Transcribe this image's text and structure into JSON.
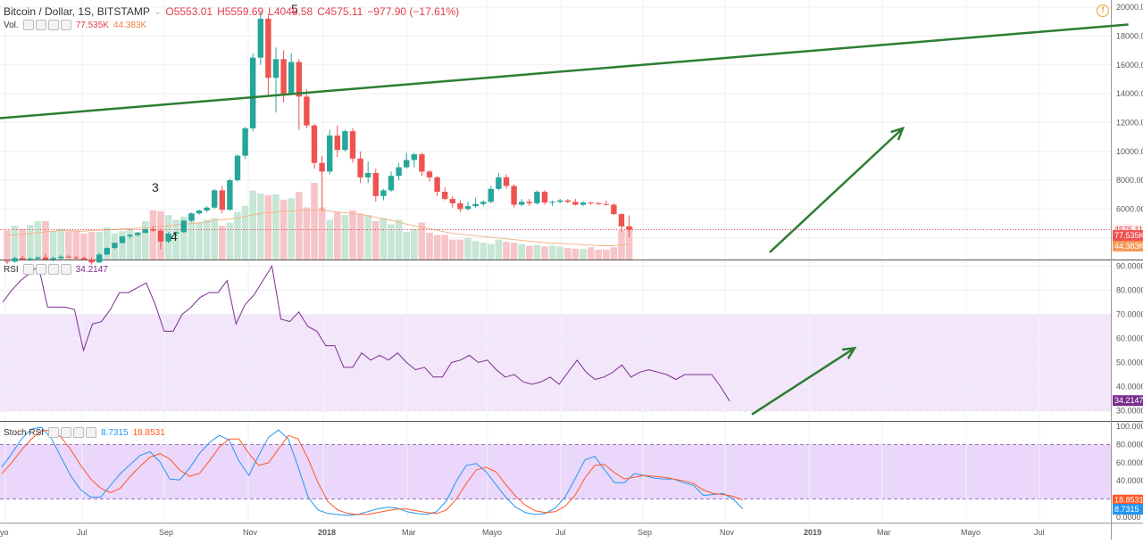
{
  "header": {
    "symbol": "Bitcoin / Dollar, 1S, BITSTAMP",
    "open": "O5553.01",
    "high": "H5559.69",
    "low": "L4048.58",
    "close": "C4575.11",
    "change": "−977.90 (−17.61%)",
    "vol_label": "Vol.",
    "vol_value": "77.535K",
    "vol_ma_value": "44.383K"
  },
  "rsi_legend": {
    "label": "RSI",
    "value": "34.2147"
  },
  "stoch_legend": {
    "label": "Stoch RSI",
    "k_value": "8.7315",
    "d_value": "18.8531"
  },
  "colors": {
    "up": "#26a69a",
    "down": "#ef5350",
    "vol_up": "#c8e6d6",
    "vol_down": "#f6c5c8",
    "vol_ma": "#f0b58a",
    "rsi_line": "#7b2d8e",
    "rsi_band": "#f3e6fb",
    "k_line": "#2196f3",
    "d_line": "#ff5722",
    "trend": "#2e7d32"
  },
  "chart_data": [
    {
      "type": "candlestick",
      "title": "Bitcoin / Dollar, 1S, BITSTAMP",
      "x_ticks": [
        "yo",
        "Jul",
        "Sep",
        "Nov",
        "2018",
        "Mar",
        "Mayo",
        "Jul",
        "Sep",
        "Nov",
        "2019",
        "Mar",
        "Mayo",
        "Jul"
      ],
      "y_ticks": [
        "20000.00",
        "18000.00",
        "16000.00",
        "14000.00",
        "12000.00",
        "10000.00",
        "8000.00",
        "6000.00",
        "4000.00"
      ],
      "ylim": [
        2500,
        20500
      ],
      "last_price_label": "4575.11",
      "volume_labels": [
        "77.535K",
        "44.383K"
      ],
      "wave_labels": [
        "3",
        "4",
        "5"
      ],
      "ohlc": [
        [
          2400,
          2500,
          2200,
          2350
        ],
        [
          2350,
          2700,
          2300,
          2600
        ],
        [
          2600,
          2750,
          2450,
          2500
        ],
        [
          2500,
          2650,
          2400,
          2550
        ],
        [
          2550,
          2700,
          2450,
          2650
        ],
        [
          2650,
          2900,
          2500,
          2500
        ],
        [
          2500,
          2700,
          2350,
          2600
        ],
        [
          2600,
          2800,
          2500,
          2700
        ],
        [
          2700,
          2800,
          2600,
          2650
        ],
        [
          2650,
          2750,
          2550,
          2600
        ],
        [
          2600,
          2700,
          2450,
          2500
        ],
        [
          2500,
          2650,
          2150,
          2300
        ],
        [
          2300,
          2950,
          2250,
          2850
        ],
        [
          2850,
          3350,
          2800,
          3300
        ],
        [
          3300,
          3700,
          3200,
          3650
        ],
        [
          3650,
          4150,
          3600,
          4100
        ],
        [
          4100,
          4300,
          3950,
          4200
        ],
        [
          4200,
          4400,
          4100,
          4350
        ],
        [
          4350,
          4650,
          4300,
          4600
        ],
        [
          4600,
          4800,
          4450,
          4500
        ],
        [
          4500,
          4600,
          3200,
          3750
        ],
        [
          3750,
          4400,
          3650,
          4300
        ],
        [
          4300,
          4450,
          4100,
          4400
        ],
        [
          4400,
          5250,
          4350,
          5200
        ],
        [
          5200,
          5750,
          5100,
          5700
        ],
        [
          5700,
          5950,
          5600,
          5900
        ],
        [
          5900,
          6200,
          5800,
          6100
        ],
        [
          6100,
          7400,
          6000,
          7300
        ],
        [
          7300,
          7600,
          5700,
          5950
        ],
        [
          5950,
          8100,
          5900,
          8000
        ],
        [
          8000,
          9800,
          7900,
          9700
        ],
        [
          9700,
          11700,
          9500,
          11600
        ],
        [
          11600,
          16800,
          11400,
          16500
        ],
        [
          16500,
          19666,
          16000,
          19200
        ],
        [
          19200,
          19500,
          13800,
          15100
        ],
        [
          15100,
          17200,
          12700,
          16400
        ],
        [
          16400,
          17000,
          13400,
          14000
        ],
        [
          14000,
          16800,
          13900,
          16200
        ],
        [
          16200,
          16400,
          11500,
          13800
        ],
        [
          13800,
          14300,
          11600,
          11800
        ],
        [
          11800,
          11900,
          8800,
          9200
        ],
        [
          9200,
          9700,
          5900,
          8600
        ],
        [
          8600,
          11500,
          8400,
          11100
        ],
        [
          11100,
          11800,
          9600,
          10100
        ],
        [
          10100,
          11500,
          10000,
          11400
        ],
        [
          11400,
          11600,
          9200,
          9500
        ],
        [
          9500,
          10000,
          7800,
          8200
        ],
        [
          8200,
          9300,
          7800,
          8500
        ],
        [
          8500,
          8800,
          6500,
          6900
        ],
        [
          6900,
          7400,
          6600,
          7300
        ],
        [
          7300,
          8600,
          7200,
          8300
        ],
        [
          8300,
          9200,
          8000,
          8900
        ],
        [
          8900,
          9900,
          8800,
          9400
        ],
        [
          9400,
          9900,
          8900,
          9800
        ],
        [
          9800,
          9900,
          8300,
          8600
        ],
        [
          8600,
          8700,
          7900,
          8200
        ],
        [
          8200,
          8300,
          6900,
          7200
        ],
        [
          7200,
          7500,
          6600,
          6700
        ],
        [
          6700,
          6900,
          6100,
          6400
        ],
        [
          6400,
          6600,
          5800,
          6000
        ],
        [
          6000,
          6500,
          5900,
          6200
        ],
        [
          6200,
          6800,
          6100,
          6350
        ],
        [
          6350,
          6600,
          6200,
          6500
        ],
        [
          6500,
          7600,
          6400,
          7400
        ],
        [
          7400,
          8500,
          7300,
          8200
        ],
        [
          8200,
          8400,
          7400,
          7600
        ],
        [
          7600,
          7700,
          6100,
          6300
        ],
        [
          6300,
          6700,
          6200,
          6500
        ],
        [
          6500,
          6700,
          6200,
          6400
        ],
        [
          6400,
          7300,
          6300,
          7200
        ],
        [
          7200,
          7300,
          6300,
          6450
        ],
        [
          6450,
          6600,
          6200,
          6500
        ],
        [
          6500,
          6700,
          6400,
          6600
        ],
        [
          6600,
          6700,
          6400,
          6500
        ],
        [
          6500,
          6700,
          6250,
          6300
        ],
        [
          6300,
          6550,
          6200,
          6450
        ],
        [
          6450,
          6500,
          6300,
          6400
        ],
        [
          6400,
          6500,
          6300,
          6350
        ],
        [
          6350,
          6600,
          6250,
          6300
        ],
        [
          6300,
          6400,
          5600,
          5650
        ],
        [
          5650,
          5700,
          4400,
          4800
        ],
        [
          4800,
          5560,
          4050,
          4575
        ]
      ],
      "volume": [
        38,
        44,
        40,
        45,
        50,
        50,
        37,
        40,
        37,
        38,
        34,
        36,
        36,
        42,
        34,
        37,
        40,
        36,
        50,
        64,
        63,
        58,
        52,
        56,
        58,
        48,
        52,
        54,
        44,
        48,
        62,
        70,
        90,
        86,
        84,
        85,
        78,
        80,
        88,
        68,
        100,
        68,
        52,
        62,
        58,
        64,
        60,
        58,
        50,
        54,
        46,
        52,
        36,
        40,
        48,
        35,
        32,
        32,
        26,
        26,
        28,
        24,
        22,
        20,
        26,
        23,
        22,
        20,
        18,
        19,
        17,
        18,
        17,
        15,
        14,
        14,
        16,
        13,
        13,
        16,
        38,
        43
      ],
      "vol_ma": [
        32,
        32,
        33,
        34,
        35,
        36,
        37,
        38,
        38,
        37,
        37,
        38,
        38,
        39,
        39,
        40,
        40,
        41,
        41,
        42,
        43,
        44,
        45,
        46,
        47,
        48,
        49,
        51,
        52,
        53,
        54,
        56,
        58,
        60,
        61,
        62,
        63,
        63,
        64,
        64,
        64,
        64,
        63,
        62,
        61,
        60,
        59,
        57,
        55,
        53,
        51,
        49,
        46,
        44,
        42,
        40,
        38,
        36,
        34,
        33,
        32,
        31,
        30,
        29,
        28,
        27,
        26,
        25,
        24,
        23,
        22,
        21,
        21,
        20,
        20,
        19,
        19,
        18,
        18,
        18,
        19,
        20
      ],
      "vol_scale_max": 100,
      "trendline": {
        "from_bar": 0,
        "from_price": 12300,
        "to_bar": 146,
        "to_price": 18800
      },
      "projection_arrow": {
        "from_bar": 90,
        "from_price": 3000,
        "to_bar": 105,
        "to_price": 11600
      }
    },
    {
      "type": "line",
      "title": "RSI",
      "ylim": [
        28,
        92
      ],
      "y_ticks": [
        "90.0000",
        "80.0000",
        "70.0000",
        "60.0000",
        "50.0000",
        "40.0000",
        "30.0000"
      ],
      "band": [
        30,
        70
      ],
      "last_value_label": "34.2147",
      "values": [
        75,
        80,
        84,
        87,
        90,
        73,
        73,
        73,
        72,
        55,
        66,
        67,
        72,
        79,
        79,
        81,
        83,
        74,
        63,
        63,
        70,
        73,
        77,
        79,
        79,
        84,
        66,
        74,
        78,
        84,
        90,
        68,
        67,
        71,
        65,
        63,
        57,
        57,
        48,
        48,
        54,
        51,
        53,
        51,
        54,
        50,
        47,
        48,
        44,
        44,
        50,
        51,
        53,
        50,
        51,
        47,
        44,
        45,
        42,
        41,
        42,
        44,
        41,
        46,
        51,
        46,
        43,
        44,
        46,
        49,
        44,
        46,
        47,
        46,
        45,
        43,
        45,
        45,
        45,
        45,
        40,
        34
      ],
      "projection_arrow": {
        "from_bar": 90,
        "from_value": 28.5,
        "to_bar": 104,
        "to_value": 56
      }
    },
    {
      "type": "line",
      "title": "Stoch RSI",
      "ylim": [
        -5,
        105
      ],
      "y_ticks": [
        "100.0000",
        "80.0000",
        "60.0000",
        "40.0000",
        "20.0000",
        "0.0000"
      ],
      "band": [
        20,
        80
      ],
      "series": [
        {
          "name": "8.7315",
          "values": [
            55,
            70,
            86,
            97,
            99,
            87,
            66,
            45,
            30,
            22,
            22,
            35,
            48,
            58,
            68,
            72,
            61,
            42,
            41,
            54,
            70,
            82,
            90,
            85,
            62,
            46,
            68,
            88,
            96,
            86,
            55,
            22,
            8,
            4,
            3,
            2,
            3,
            6,
            9,
            11,
            10,
            6,
            4,
            3,
            6,
            18,
            40,
            57,
            59,
            50,
            36,
            22,
            11,
            5,
            3,
            4,
            10,
            22,
            42,
            63,
            67,
            52,
            38,
            38,
            48,
            46,
            43,
            42,
            42,
            38,
            35,
            24,
            25,
            26,
            20,
            9
          ]
        },
        {
          "name": "18.8531",
          "values": [
            48,
            60,
            74,
            86,
            95,
            96,
            88,
            74,
            57,
            42,
            32,
            27,
            32,
            45,
            56,
            66,
            70,
            64,
            52,
            45,
            48,
            62,
            77,
            86,
            86,
            70,
            57,
            60,
            75,
            90,
            86,
            64,
            38,
            17,
            8,
            4,
            3,
            3,
            5,
            7,
            9,
            9,
            7,
            5,
            4,
            8,
            20,
            37,
            52,
            55,
            50,
            36,
            23,
            13,
            7,
            5,
            6,
            12,
            24,
            43,
            57,
            58,
            49,
            42,
            44,
            46,
            45,
            44,
            42,
            40,
            37,
            30,
            26,
            25,
            23,
            18.85
          ]
        }
      ]
    }
  ]
}
